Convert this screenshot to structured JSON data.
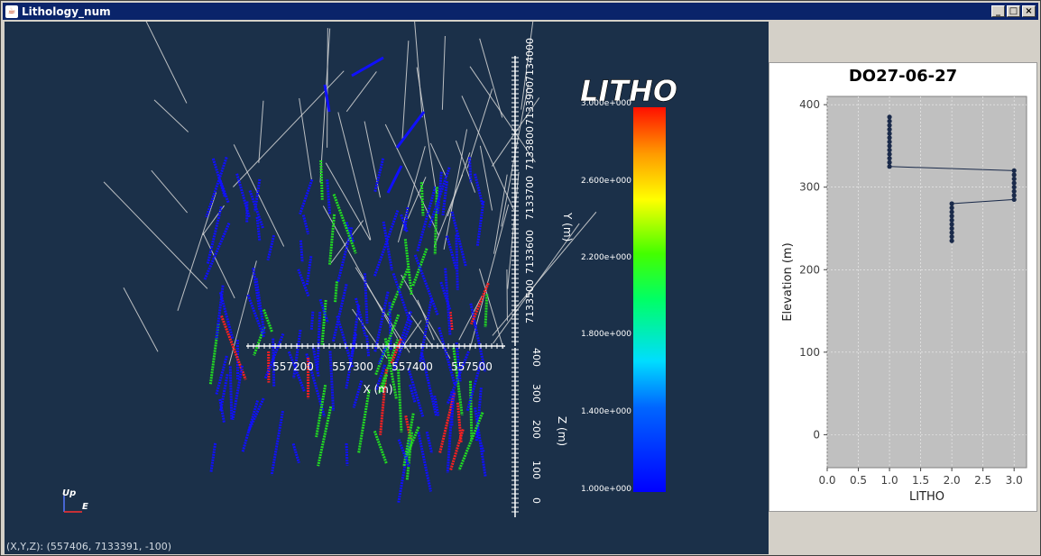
{
  "window": {
    "title": "Lithology_num",
    "minimize_glyph": "_",
    "maximize_glyph": "□",
    "close_glyph": "×"
  },
  "viewer": {
    "coords_label": "(X,Y,Z): (557406, 7133391,  -100)",
    "x_axis": {
      "label": "X (m)",
      "ticks": [
        "557200",
        "557300",
        "557400",
        "557500"
      ]
    },
    "y_axis": {
      "label": "Y (m)",
      "ticks": [
        "7133500",
        "7133600",
        "7133700",
        "7133800",
        "7133900",
        "7134000"
      ]
    },
    "z_axis": {
      "label": "Z (m)",
      "ticks": [
        "400",
        "300",
        "200",
        "100",
        "0"
      ]
    },
    "orientation": {
      "up": "Up",
      "east": "E"
    },
    "legend": {
      "title": "LITHO",
      "ticks": [
        "3.000e+000",
        "2.600e+000",
        "2.200e+000",
        "1.800e+000",
        "1.400e+000",
        "1.000e+000"
      ]
    },
    "colors": {
      "background": "#1b3049",
      "blue": "#1010ff",
      "green": "#22dd22",
      "red": "#ff2020",
      "collar": "#d8d8d8"
    }
  },
  "chart": {
    "title": "DO27-06-27",
    "chart_data": {
      "type": "line",
      "title": "DO27-06-27",
      "xlabel": "LITHO",
      "ylabel": "Elevation (m)",
      "xlim": [
        0,
        3.2
      ],
      "ylim": [
        -40,
        410
      ],
      "x_ticks": [
        "0.0",
        "0.5",
        "1.0",
        "1.5",
        "2.0",
        "2.5",
        "3.0"
      ],
      "y_ticks": [
        "0",
        "100",
        "200",
        "300",
        "400"
      ],
      "grid": true,
      "series": [
        {
          "points": [
            [
              1,
              385
            ],
            [
              1,
              380
            ],
            [
              1,
              375
            ],
            [
              1,
              370
            ],
            [
              1,
              365
            ],
            [
              1,
              360
            ],
            [
              1,
              355
            ],
            [
              1,
              350
            ],
            [
              1,
              345
            ],
            [
              1,
              340
            ],
            [
              1,
              335
            ],
            [
              1,
              330
            ],
            [
              1,
              325
            ],
            [
              3,
              320
            ],
            [
              3,
              315
            ],
            [
              3,
              310
            ],
            [
              3,
              305
            ],
            [
              3,
              300
            ],
            [
              3,
              295
            ],
            [
              3,
              290
            ],
            [
              3,
              285
            ],
            [
              2,
              280
            ],
            [
              2,
              275
            ],
            [
              2,
              270
            ],
            [
              2,
              265
            ],
            [
              2,
              260
            ],
            [
              2,
              255
            ],
            [
              2,
              250
            ],
            [
              2,
              245
            ],
            [
              2,
              240
            ],
            [
              2,
              235
            ]
          ]
        }
      ]
    }
  }
}
